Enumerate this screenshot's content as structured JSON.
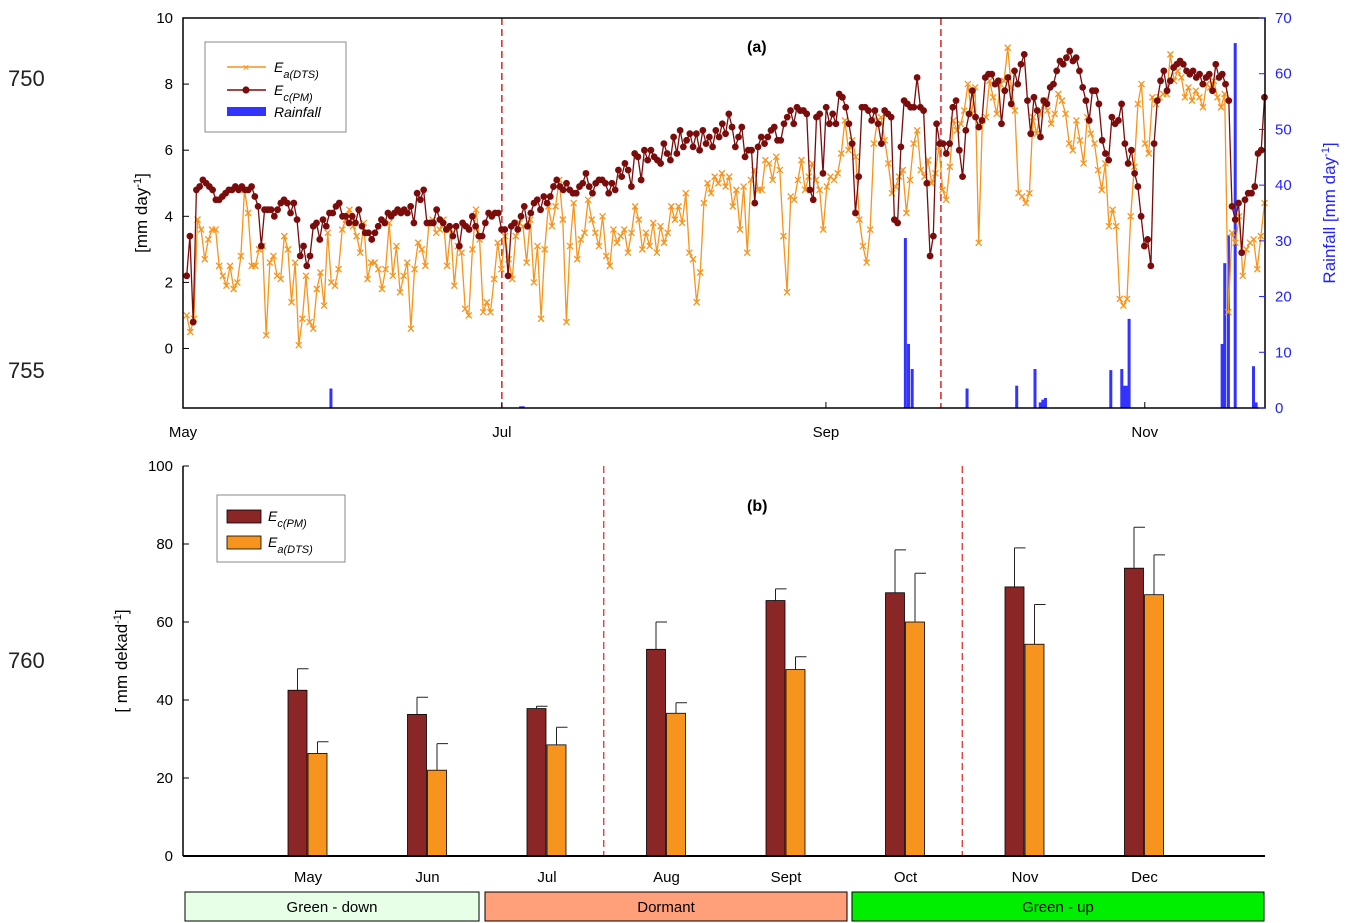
{
  "line_numbers": [
    "750",
    "755",
    "760"
  ],
  "chart_data": [
    {
      "type": "line",
      "panel_label": "(a)",
      "ylabel": "[mm day",
      "ylabel_sup": "-1",
      "ylabel_close": "]",
      "y2label": "Rainfall [mm day",
      "y2label_sup": "-1",
      "y2label_close": "]",
      "ylim": [
        -1.8,
        10
      ],
      "yticks": [
        "0",
        "2",
        "4",
        "6",
        "8",
        "10"
      ],
      "y2lim": [
        0,
        70
      ],
      "y2ticks": [
        "0",
        "10",
        "20",
        "30",
        "40",
        "50",
        "60",
        "70"
      ],
      "xticks": [
        "May",
        "Jul",
        "Sep",
        "Nov"
      ],
      "legend": {
        "placement": "top-left",
        "entries": [
          {
            "main": "E",
            "sub": "a(DTS)"
          },
          {
            "main": "E",
            "sub": "c(PM)"
          },
          {
            "main": "Rainfall",
            "sub": ""
          }
        ]
      },
      "series": [
        {
          "name": "Ea(DTS)",
          "color": "#f7941d",
          "values": [
            1.0,
            0.5,
            0.9,
            3.9,
            3.6,
            2.7,
            3.3,
            3.6,
            3.6,
            2.5,
            2.2,
            1.9,
            2.5,
            1.8,
            2.0,
            2.8,
            4.8,
            4.1,
            2.5,
            2.5,
            3.0,
            3.1,
            0.4,
            2.6,
            2.8,
            2.2,
            2.1,
            3.4,
            3.0,
            1.4,
            2.6,
            0.1,
            0.9,
            2.2,
            0.8,
            0.6,
            1.8,
            2.3,
            1.3,
            3.5,
            2.0,
            1.9,
            2.4,
            3.6,
            3.9,
            4.2,
            3.7,
            3.4,
            2.9,
            3.8,
            2.1,
            2.6,
            2.6,
            2.4,
            1.8,
            2.4,
            3.8,
            2.2,
            3.1,
            1.7,
            2.2,
            2.6,
            0.6,
            2.4,
            3.2,
            3.0,
            2.5,
            3.8,
            3.9,
            3.5,
            3.6,
            3.9,
            2.5,
            3.6,
            1.9,
            3.1,
            2.9,
            1.2,
            1.0,
            3.0,
            4.2,
            3.3,
            1.1,
            1.4,
            1.1,
            2.1,
            3.2,
            2.4,
            3.4,
            2.7,
            2.1,
            3.4,
            3.8,
            3.7,
            2.6,
            3.9,
            2.0,
            3.1,
            0.9,
            3.0,
            4.3,
            3.7,
            4.3,
            5.1,
            3.9,
            0.8,
            3.1,
            4.4,
            2.7,
            3.3,
            3.5,
            4.5,
            3.9,
            3.5,
            3.1,
            4.0,
            2.8,
            2.5,
            3.6,
            3.2,
            3.4,
            3.6,
            2.9,
            3.5,
            4.3,
            3.9,
            3.0,
            3.5,
            3.1,
            3.8,
            2.9,
            3.7,
            3.2,
            3.5,
            4.3,
            3.9,
            4.3,
            3.8,
            4.7,
            2.9,
            2.7,
            1.4,
            2.3,
            4.4,
            5.0,
            4.7,
            5.2,
            5.0,
            5.3,
            4.9,
            5.2,
            4.3,
            4.8,
            3.6,
            4.9,
            2.9,
            5.1,
            5.4,
            4.8,
            4.8,
            5.7,
            5.6,
            5.1,
            5.8,
            5.4,
            3.4,
            1.7,
            4.6,
            4.5,
            5.1,
            5.7,
            4.8,
            5.2,
            5.6,
            5.1,
            4.8,
            3.6,
            4.9,
            5.2,
            5.1,
            5.3,
            5.9,
            6.9,
            6.0,
            6.3,
            5.8,
            3.9,
            3.1,
            2.6,
            3.6,
            6.2,
            6.9,
            7.0,
            6.3,
            5.6,
            4.7,
            4.9,
            5.2,
            5.4,
            4.1,
            5.1,
            6.2,
            6.6,
            5.4,
            5.2,
            5.7,
            5.0,
            5.3,
            6.1,
            4.8,
            4.5,
            5.5,
            6.9,
            6.6,
            6.8,
            7.2,
            8.0,
            7.1,
            7.9,
            3.2,
            6.9,
            7.0,
            8.1,
            7.6,
            7.1,
            8.0,
            8.1,
            9.1,
            7.9,
            7.2,
            4.7,
            4.6,
            4.4,
            4.7,
            7.0,
            6.5,
            7.1,
            7.5,
            7.2,
            6.8,
            7.1,
            7.7,
            7.5,
            7.1,
            6.2,
            6.0,
            6.9,
            6.3,
            5.6,
            7.0,
            6.5,
            6.2,
            5.4,
            4.8,
            5.6,
            3.7,
            4.2,
            3.7,
            1.5,
            1.3,
            1.5,
            4.0,
            5.5,
            7.4,
            8.0,
            6.2,
            5.9,
            7.6,
            7.4,
            7.6,
            7.7,
            7.7,
            8.9,
            8.1,
            8.4,
            8.2,
            7.6,
            7.9,
            7.5,
            7.8,
            7.6,
            7.3,
            8.0,
            7.9,
            8.1,
            7.6,
            7.3,
            7.7,
            1.1,
            3.5,
            3.2,
            4.0,
            2.2,
            3.0,
            3.2,
            3.3,
            2.4,
            3.4,
            4.4
          ]
        },
        {
          "name": "Ec(PM)",
          "color": "#7a0c0c",
          "values": [
            2.2,
            3.4,
            0.8,
            4.8,
            4.9,
            5.1,
            5.0,
            4.9,
            4.8,
            4.5,
            4.5,
            4.6,
            4.7,
            4.8,
            4.8,
            4.9,
            4.8,
            4.9,
            4.8,
            4.8,
            4.9,
            4.6,
            4.3,
            3.1,
            4.2,
            4.2,
            4.2,
            4.0,
            4.2,
            4.4,
            4.5,
            4.4,
            4.1,
            4.4,
            3.9,
            2.8,
            3.1,
            2.5,
            2.8,
            3.7,
            3.8,
            3.3,
            3.9,
            3.7,
            4.1,
            4.1,
            4.3,
            4.4,
            4.0,
            4.0,
            3.8,
            4.0,
            3.8,
            4.2,
            3.7,
            3.5,
            3.5,
            3.3,
            3.5,
            3.7,
            3.9,
            3.8,
            4.1,
            4.0,
            4.1,
            4.2,
            4.1,
            4.2,
            4.1,
            4.3,
            3.8,
            4.7,
            4.5,
            4.8,
            3.8,
            3.8,
            3.8,
            4.2,
            3.9,
            3.8,
            3.6,
            3.7,
            3.4,
            3.7,
            3.1,
            3.8,
            3.7,
            3.6,
            4.0,
            3.7,
            3.4,
            3.4,
            3.8,
            4.1,
            4.0,
            4.1,
            4.1,
            3.6,
            3.6,
            2.2,
            3.7,
            3.8,
            3.6,
            4.0,
            4.3,
            3.7,
            4.1,
            4.4,
            4.5,
            4.2,
            4.6,
            4.4,
            4.6,
            4.9,
            5.1,
            4.9,
            4.8,
            5.0,
            4.8,
            4.7,
            4.7,
            4.9,
            5.0,
            5.3,
            4.9,
            4.7,
            5.0,
            5.1,
            5.1,
            5.0,
            4.7,
            5.0,
            4.8,
            5.4,
            5.2,
            5.6,
            5.4,
            4.9,
            5.9,
            5.8,
            5.1,
            6.0,
            5.7,
            6.0,
            5.8,
            5.7,
            5.6,
            6.2,
            5.9,
            5.7,
            6.4,
            5.9,
            6.6,
            6.1,
            6.3,
            6.5,
            6.1,
            6.5,
            6.0,
            6.6,
            6.2,
            6.4,
            6.1,
            6.6,
            6.4,
            6.8,
            6.5,
            7.1,
            6.7,
            6.1,
            6.4,
            6.7,
            5.8,
            6.0,
            6.0,
            4.4,
            6.1,
            6.4,
            6.2,
            6.4,
            6.6,
            6.7,
            6.3,
            6.3,
            6.8,
            7.0,
            7.2,
            6.8,
            7.3,
            7.2,
            7.2,
            7.1,
            4.8,
            4.5,
            7.0,
            7.1,
            5.3,
            7.3,
            6.8,
            7.1,
            6.8,
            7.7,
            7.6,
            7.3,
            6.8,
            6.2,
            4.1,
            5.2,
            7.3,
            7.3,
            7.2,
            6.9,
            7.2,
            6.8,
            6.2,
            7.2,
            7.1,
            7.0,
            3.9,
            3.8,
            6.1,
            7.5,
            7.4,
            7.3,
            7.3,
            8.2,
            7.3,
            7.2,
            5.0,
            2.8,
            3.4,
            6.8,
            6.2,
            6.2,
            5.9,
            6.2,
            7.3,
            7.5,
            6.0,
            5.2,
            6.6,
            7.1,
            7.8,
            7.0,
            6.7,
            6.9,
            8.2,
            8.3,
            8.3,
            8.0,
            8.1,
            6.8,
            7.8,
            8.2,
            7.4,
            8.4,
            8.0,
            8.6,
            8.9,
            7.5,
            6.5,
            7.6,
            7.2,
            6.4,
            7.5,
            7.4,
            7.9,
            8.0,
            8.4,
            8.7,
            8.6,
            8.8,
            9.0,
            8.7,
            8.8,
            8.4,
            7.9,
            7.5,
            6.9,
            7.8,
            7.8,
            7.4,
            6.3,
            5.9,
            5.7,
            7.0,
            6.8,
            6.9,
            7.4,
            6.2,
            5.6,
            6.0,
            5.3,
            4.9,
            4.0,
            3.1,
            3.3,
            2.5,
            6.2,
            7.5,
            8.1,
            8.4,
            7.8,
            8.1,
            8.5,
            8.6,
            8.7,
            8.6,
            8.4,
            8.3,
            8.4,
            8.2,
            8.3,
            8.0,
            8.2,
            8.3,
            7.8,
            8.6,
            8.2,
            8.3,
            8.0,
            7.5,
            4.3,
            3.9,
            4.4,
            2.9,
            4.5,
            4.7,
            4.7,
            4.9,
            5.9,
            6.0,
            7.6
          ]
        },
        {
          "name": "Rainfall",
          "color": "#3333ff",
          "axis": "right",
          "bars": [
            {
              "x": 28.3,
              "value": 3.5
            },
            {
              "x": 64.6,
              "value": 0.3
            },
            {
              "x": 65.1,
              "value": 0.3
            },
            {
              "x": 138.2,
              "value": 30.5
            },
            {
              "x": 138.8,
              "value": 11.5
            },
            {
              "x": 139.5,
              "value": 7
            },
            {
              "x": 150.0,
              "value": 3.5
            },
            {
              "x": 159.5,
              "value": 4
            },
            {
              "x": 163.0,
              "value": 7
            },
            {
              "x": 164.0,
              "value": 1
            },
            {
              "x": 164.5,
              "value": 1.5
            },
            {
              "x": 165.0,
              "value": 1.8
            },
            {
              "x": 177.5,
              "value": 6.8
            },
            {
              "x": 179.6,
              "value": 7
            },
            {
              "x": 180.0,
              "value": 4
            },
            {
              "x": 180.5,
              "value": 4
            },
            {
              "x": 181.0,
              "value": 16
            },
            {
              "x": 198.8,
              "value": 11.5
            },
            {
              "x": 199.3,
              "value": 26
            },
            {
              "x": 200.0,
              "value": 31
            },
            {
              "x": 201.3,
              "value": 65.5
            },
            {
              "x": 204.8,
              "value": 7.5
            },
            {
              "x": 205.3,
              "value": 1
            }
          ]
        }
      ],
      "xrange": [
        0,
        207
      ],
      "x_tick_positions": [
        0,
        61,
        123,
        184
      ],
      "x_start": 0.7,
      "x_end": 206.9,
      "vlines": [
        61,
        145
      ]
    },
    {
      "type": "bar",
      "panel_label": "(b)",
      "ylabel": "[ mm dekad",
      "ylabel_sup": "-1",
      "ylabel_close": "]",
      "ylim": [
        0,
        100
      ],
      "yticks": [
        "0",
        "20",
        "40",
        "60",
        "80",
        "100"
      ],
      "categories": [
        "May",
        "Jun",
        "Jul",
        "Aug",
        "Sept",
        "Oct",
        "Nov",
        "Dec"
      ],
      "legend": {
        "placement": "top-left",
        "entries": [
          {
            "main": "E",
            "sub": "c(PM)"
          },
          {
            "main": "E",
            "sub": "a(DTS)"
          }
        ]
      },
      "series": [
        {
          "name": "Ec(PM)",
          "color": "#8b2626",
          "values": [
            42.5,
            36.3,
            37.8,
            53.0,
            65.5,
            67.5,
            69.0,
            73.8
          ],
          "errors": [
            5.5,
            4.4,
            0.6,
            7.0,
            3.0,
            11.0,
            10.0,
            10.5
          ]
        },
        {
          "name": "Ea(DTS)",
          "color": "#f7941d",
          "values": [
            26.3,
            22.0,
            28.5,
            36.6,
            47.8,
            60.0,
            54.3,
            67.0
          ],
          "errors": [
            3.0,
            6.8,
            4.5,
            2.7,
            3.3,
            12.5,
            10.2,
            10.2
          ]
        }
      ],
      "vlines_between": [
        [
          2,
          3
        ],
        [
          5,
          6
        ]
      ]
    }
  ],
  "phases": [
    {
      "label": "Green - down",
      "color": "#e6ffe6"
    },
    {
      "label": "Dormant",
      "color": "#ffa07a"
    },
    {
      "label": "Green - up",
      "color": "#00ee00"
    }
  ]
}
